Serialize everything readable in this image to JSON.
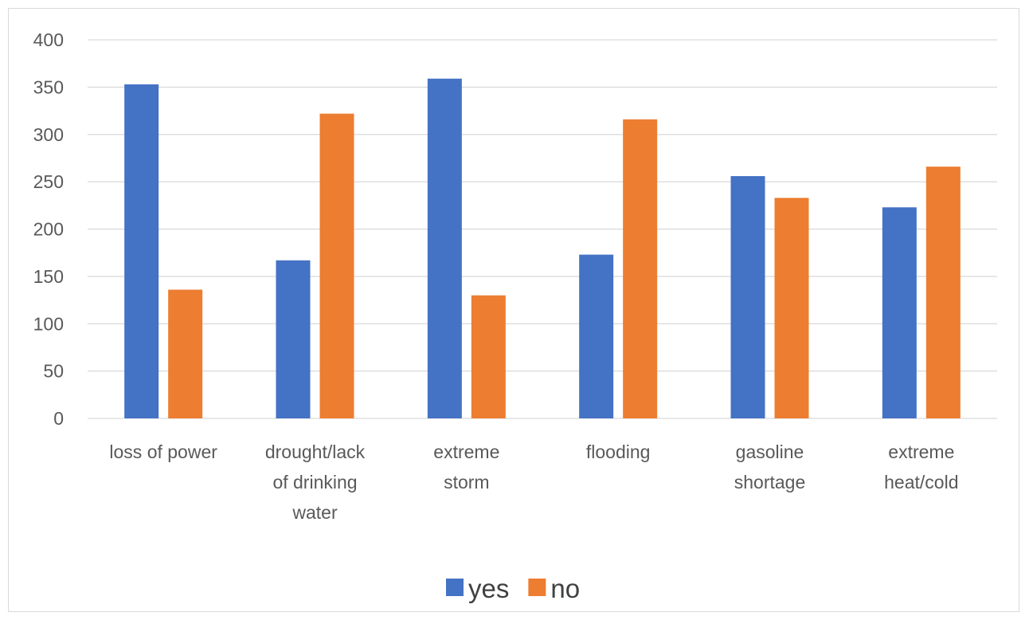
{
  "chart_data": {
    "type": "bar",
    "categories": [
      [
        "loss of power"
      ],
      [
        "drought/lack",
        "of drinking",
        "water"
      ],
      [
        "extreme",
        "storm"
      ],
      [
        "flooding"
      ],
      [
        "gasoline",
        "shortage"
      ],
      [
        "extreme",
        "heat/cold"
      ]
    ],
    "series": [
      {
        "name": "yes",
        "color": "#4472C4",
        "values": [
          353,
          167,
          359,
          173,
          256,
          223
        ]
      },
      {
        "name": "no",
        "color": "#ED7D31",
        "values": [
          136,
          322,
          130,
          316,
          233,
          266
        ]
      }
    ],
    "ylim": [
      0,
      400
    ],
    "yticks": [
      0,
      50,
      100,
      150,
      200,
      250,
      300,
      350,
      400
    ],
    "grid": true,
    "legend": "bottom"
  }
}
